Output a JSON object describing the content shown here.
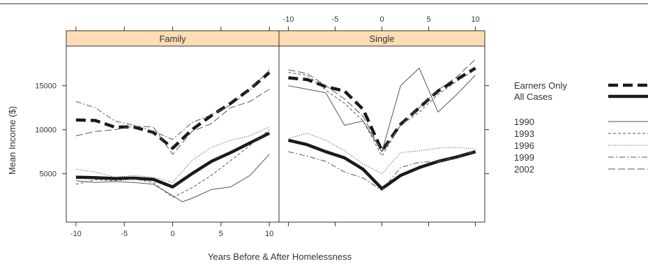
{
  "chart_data": {
    "type": "line",
    "panels": [
      {
        "name": "Family",
        "series": [
          {
            "name": "Earners Only",
            "x": [
              -10,
              -8,
              -6,
              -4,
              -2,
              0,
              2,
              4,
              6,
              8,
              10
            ],
            "values": [
              11100,
              11050,
              10300,
              10300,
              9700,
              7900,
              10000,
              11600,
              13000,
              14600,
              16500
            ]
          },
          {
            "name": "All Cases",
            "x": [
              -10,
              -8,
              -6,
              -4,
              -2,
              0,
              2,
              4,
              6,
              8,
              10
            ],
            "values": [
              4600,
              4550,
              4450,
              4500,
              4350,
              3500,
              5000,
              6400,
              7400,
              8500,
              9600
            ]
          },
          {
            "name": "1990",
            "x": [
              -10,
              -8,
              -6,
              -4,
              -2,
              0,
              1,
              2,
              4,
              6,
              8,
              10
            ],
            "values": [
              4200,
              4000,
              4100,
              4000,
              3800,
              2500,
              1800,
              2200,
              3200,
              3500,
              4800,
              7200
            ]
          },
          {
            "name": "1993",
            "x": [
              -10,
              -8,
              -6,
              -4,
              -2,
              0,
              2,
              4,
              6,
              8,
              10
            ],
            "values": [
              3800,
              4300,
              4200,
              4400,
              4000,
              2300,
              3400,
              4800,
              6500,
              8200,
              10000
            ]
          },
          {
            "name": "1996",
            "x": [
              -10,
              -8,
              -6,
              -4,
              -2,
              0,
              2,
              4,
              6,
              8,
              10
            ],
            "values": [
              5500,
              5200,
              4600,
              4800,
              4600,
              4000,
              6500,
              8000,
              8800,
              9300,
              10300
            ]
          },
          {
            "name": "1999",
            "x": [
              -10,
              -8,
              -6,
              -4,
              -2,
              0,
              2,
              4,
              6,
              8,
              10
            ],
            "values": [
              13200,
              12500,
              11000,
              10500,
              9800,
              8900,
              10800,
              11700,
              12800,
              14500,
              16800
            ]
          },
          {
            "name": "2002",
            "x": [
              -10,
              -8,
              -6,
              -4,
              -2,
              0,
              2,
              4,
              6,
              8,
              10
            ],
            "values": [
              9300,
              9800,
              10000,
              10400,
              10300,
              7200,
              9800,
              10700,
              12500,
              13200,
              14600
            ]
          }
        ]
      },
      {
        "name": "Single",
        "series": [
          {
            "name": "Earners Only",
            "x": [
              -10,
              -8,
              -6,
              -4,
              -2,
              0,
              2,
              4,
              6,
              8,
              10
            ],
            "values": [
              15900,
              15700,
              14900,
              14400,
              12300,
              7600,
              10600,
              12500,
              14400,
              15700,
              17000
            ]
          },
          {
            "name": "All Cases",
            "x": [
              -10,
              -8,
              -6,
              -4,
              -2,
              0,
              2,
              4,
              6,
              8,
              10
            ],
            "values": [
              8800,
              8300,
              7500,
              6800,
              5500,
              3300,
              4800,
              5700,
              6400,
              6900,
              7500
            ]
          },
          {
            "name": "1990",
            "x": [
              -10,
              -8,
              -6,
              -4,
              -2,
              0,
              2,
              4,
              6,
              8,
              10
            ],
            "values": [
              15000,
              14600,
              14200,
              10500,
              11000,
              7500,
              15000,
              17000,
              12000,
              14000,
              16200
            ]
          },
          {
            "name": "1993",
            "x": [
              -10,
              -8,
              -6,
              -4,
              -2,
              0,
              2,
              4,
              6,
              8,
              10
            ],
            "values": [
              16500,
              16200,
              14500,
              13000,
              11000,
              7000,
              10500,
              12000,
              14000,
              15500,
              16800
            ]
          },
          {
            "name": "1996",
            "x": [
              -10,
              -8,
              -6,
              -4,
              -2,
              0,
              2,
              4,
              6,
              8,
              10
            ],
            "values": [
              9000,
              9600,
              8800,
              7600,
              6100,
              5000,
              7400,
              7600,
              7900,
              8000,
              7800
            ]
          },
          {
            "name": "1999",
            "x": [
              -10,
              -8,
              -6,
              -4,
              -2,
              0,
              2,
              4,
              6,
              8,
              10
            ],
            "values": [
              7500,
              7000,
              6400,
              5200,
              4500,
              3100,
              5700,
              6300,
              6400,
              6800,
              7600
            ]
          },
          {
            "name": "2002",
            "x": [
              -10,
              -8,
              -6,
              -4,
              -2,
              0,
              2,
              4,
              6,
              8,
              10
            ],
            "values": [
              16800,
              16400,
              15000,
              13500,
              11500,
              7500,
              10500,
              12500,
              14500,
              16000,
              18000
            ]
          }
        ]
      }
    ],
    "xlabel": "Years Before & After Homelessness",
    "ylabel": "Mean Income ($)",
    "x_ticks": [
      "-10",
      "-5",
      "0",
      "5",
      "10"
    ],
    "y_ticks": [
      "5000",
      "10000",
      "15000"
    ],
    "xlim": [
      -11,
      11
    ],
    "ylim": [
      -500,
      19500
    ],
    "legend": {
      "position": "right",
      "entries": [
        {
          "label": "Earners Only",
          "style": "bold-dashed"
        },
        {
          "label": "All Cases",
          "style": "bold-solid"
        },
        {
          "label": "1990",
          "style": "solid"
        },
        {
          "label": "1993",
          "style": "dashed"
        },
        {
          "label": "1996",
          "style": "dotted"
        },
        {
          "label": "1999",
          "style": "dash-dot"
        },
        {
          "label": "2002",
          "style": "long-dash"
        }
      ]
    },
    "colors": {
      "strip_bg": "#ffdcb4",
      "line": "#1a1a1a",
      "thin_line": "#555555",
      "frame": "#333333"
    }
  }
}
